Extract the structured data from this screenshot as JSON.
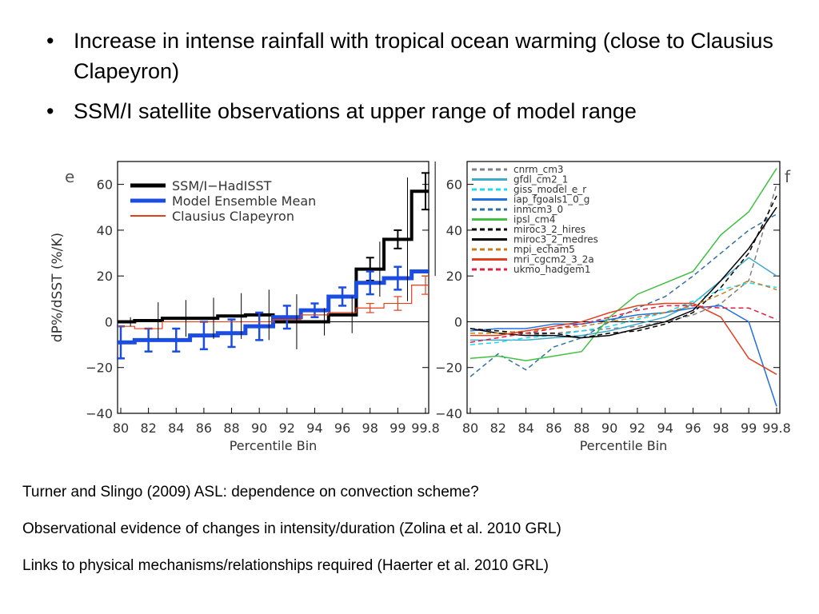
{
  "slide": {
    "bullets": [
      "Increase in intense rainfall with tropical  ocean warming (close to Clausius Clapeyron)",
      "SSM/I satellite observations at upper range of model range"
    ],
    "notes": [
      "Turner and Slingo (2009) ASL: dependence on convection scheme?",
      "Observational evidence of changes in intensity/duration (Zolina et al. 2010 GRL)",
      "Links to physical mechanisms/relationships required (Haerter et al. 2010 GRL)"
    ]
  },
  "chart_data": [
    {
      "type": "line",
      "panel_label": "e",
      "xlabel": "Percentile Bin",
      "ylabel": "dP%/dSST (%/K)",
      "x_tick_labels": [
        "80",
        "82",
        "84",
        "86",
        "88",
        "90",
        "92",
        "94",
        "96",
        "98",
        "99",
        "99.8"
      ],
      "y_ticks": [
        -40,
        -20,
        0,
        20,
        40,
        60
      ],
      "ylim": [
        -40,
        70
      ],
      "grid": false,
      "legend": "top-left",
      "zero_line": true,
      "series": [
        {
          "name": "SSM/I−HadISST",
          "color": "#000000",
          "style": "step",
          "width": 4,
          "values": [
            0,
            0.5,
            1.5,
            1.5,
            2.5,
            3,
            0,
            0,
            3,
            23,
            36,
            57
          ],
          "errors": [
            null,
            null,
            null,
            null,
            null,
            null,
            null,
            null,
            null,
            5,
            4,
            8
          ],
          "error_bars_only": [
            2,
            8,
            8,
            9,
            10,
            11,
            12,
            6,
            8,
            12,
            27,
            37
          ],
          "error_bar_width": [
            2,
            8,
            8,
            9,
            10,
            11,
            12,
            6,
            8,
            12,
            27,
            37
          ]
        },
        {
          "name": "Model Ensemble Mean",
          "color": "#1a4de0",
          "style": "step",
          "width": 5,
          "values": [
            -9,
            -8,
            -8,
            -6,
            -5,
            -2,
            2,
            5,
            11,
            17,
            19,
            22
          ],
          "errors": [
            7,
            5,
            5,
            6,
            6,
            6,
            5,
            3,
            4,
            5,
            5,
            0
          ]
        },
        {
          "name": "Clausius Clapeyron",
          "color": "#e0401a",
          "style": "step",
          "width": 1.2,
          "values": [
            -2,
            -3,
            0,
            0,
            0,
            0,
            1,
            3,
            4,
            6,
            8,
            16
          ],
          "errors": [
            null,
            null,
            null,
            null,
            null,
            null,
            null,
            null,
            null,
            2,
            3,
            4
          ]
        }
      ],
      "obs_error_halfwidth": [
        2,
        8,
        8,
        9,
        10,
        11,
        12,
        6,
        8,
        12,
        27,
        37
      ]
    },
    {
      "type": "line",
      "panel_label": "f",
      "xlabel": "Percentile Bin",
      "x_tick_labels": [
        "80",
        "82",
        "84",
        "86",
        "88",
        "90",
        "92",
        "94",
        "96",
        "98",
        "99",
        "99.8"
      ],
      "y_ticks": [
        -40,
        -20,
        0,
        20,
        40,
        60
      ],
      "ylim": [
        -40,
        70
      ],
      "grid": false,
      "legend": "top-left",
      "zero_line": true,
      "series": [
        {
          "name": "cnrm_cm3",
          "color": "#808080",
          "dash": "6,4",
          "values": [
            -5,
            -5,
            -6,
            -5,
            -4,
            -3,
            -2,
            0,
            3,
            8,
            18,
            60
          ]
        },
        {
          "name": "gfdl_cm2_1",
          "color": "#40a8c8",
          "dash": "",
          "values": [
            -8,
            -8,
            -8,
            -7,
            -6,
            -4,
            -1,
            2,
            8,
            18,
            28,
            20
          ]
        },
        {
          "name": "giss_model_e_r",
          "color": "#20d8f0",
          "dash": "6,4",
          "values": [
            -10,
            -9,
            -7,
            -6,
            -4,
            -2,
            1,
            4,
            9,
            14,
            17,
            15
          ]
        },
        {
          "name": "iap_fgoals1_0_g",
          "color": "#2070e0",
          "dash": "",
          "values": [
            -4,
            -3,
            -3,
            -1,
            -1,
            1,
            3,
            4,
            6,
            7,
            0,
            -37
          ]
        },
        {
          "name": "inmcm3_0",
          "color": "#3070a0",
          "dash": "6,4",
          "values": [
            -24,
            -14,
            -21,
            -11,
            -7,
            0,
            6,
            11,
            20,
            30,
            40,
            47
          ]
        },
        {
          "name": "ipsl_cm4",
          "color": "#40c040",
          "dash": "",
          "values": [
            -16,
            -15,
            -17,
            -15,
            -13,
            2,
            12,
            17,
            22,
            38,
            48,
            67
          ]
        },
        {
          "name": "miroc3_2_hires",
          "color": "#000000",
          "dash": "6,4",
          "values": [
            -3,
            -4,
            -5,
            -5,
            -7,
            -5,
            -4,
            -1,
            4,
            15,
            30,
            55
          ]
        },
        {
          "name": "miroc3_2_medres",
          "color": "#000000",
          "dash": "",
          "values": [
            -3,
            -5,
            -6,
            -6,
            -7,
            -6,
            -3,
            0,
            5,
            18,
            32,
            50
          ]
        },
        {
          "name": "mpi_echam5",
          "color": "#c08020",
          "dash": "6,4",
          "values": [
            -5,
            -5,
            -4,
            -3,
            -2,
            0,
            2,
            4,
            7,
            12,
            18,
            14
          ]
        },
        {
          "name": "mri_cgcm2_3_2a",
          "color": "#e04020",
          "dash": "",
          "values": [
            -6,
            -6,
            -4,
            -2,
            0,
            4,
            7,
            8,
            8,
            2,
            -16,
            -23
          ]
        },
        {
          "name": "ukmo_hadgem1",
          "color": "#e02040",
          "dash": "6,4",
          "values": [
            -9,
            -7,
            -5,
            -3,
            -1,
            2,
            5,
            7,
            7,
            6,
            6,
            1
          ]
        }
      ]
    }
  ]
}
